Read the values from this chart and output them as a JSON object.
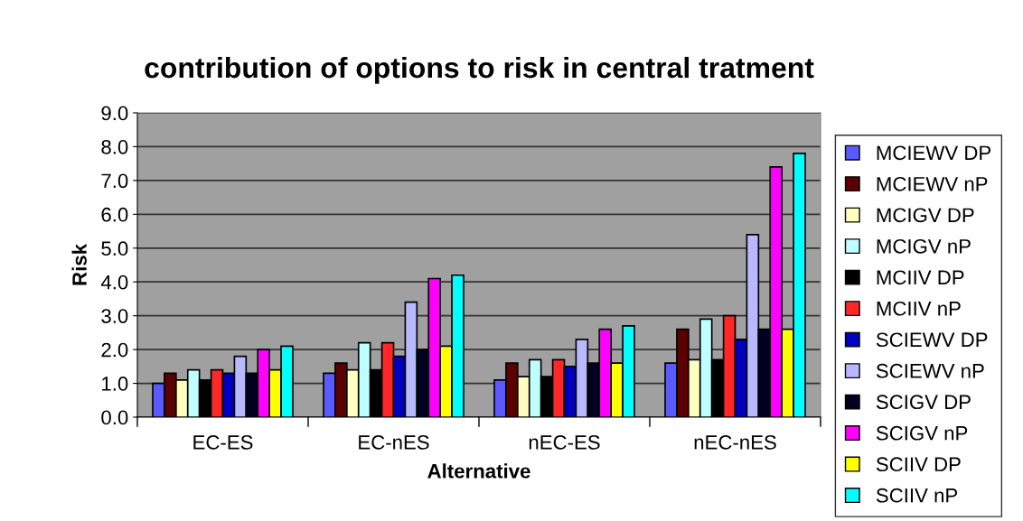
{
  "chart_data": {
    "type": "bar",
    "title": "contribution of options to risk in central tratment",
    "xlabel": "Alternative",
    "ylabel": "Risk",
    "categories": [
      "EC-ES",
      "EC-nES",
      "nEC-ES",
      "nEC-nES"
    ],
    "series": [
      {
        "name": "MCIEWV DP",
        "color": "#5a5aff",
        "values": [
          1.0,
          1.3,
          1.1,
          1.6
        ]
      },
      {
        "name": "MCIEWV nP",
        "color": "#5a0000",
        "values": [
          1.3,
          1.6,
          1.6,
          2.6
        ]
      },
      {
        "name": "MCIGV DP",
        "color": "#ffffc0",
        "values": [
          1.1,
          1.4,
          1.2,
          1.7
        ]
      },
      {
        "name": "MCIGV nP",
        "color": "#c0ffff",
        "values": [
          1.4,
          2.2,
          1.7,
          2.9
        ]
      },
      {
        "name": "MCIIV DP",
        "color": "#000000",
        "values": [
          1.1,
          1.4,
          1.2,
          1.7
        ]
      },
      {
        "name": "MCIIV nP",
        "color": "#ff2828",
        "values": [
          1.4,
          2.2,
          1.7,
          3.0
        ]
      },
      {
        "name": "SCIEWV DP",
        "color": "#0000c0",
        "values": [
          1.3,
          1.8,
          1.5,
          2.3
        ]
      },
      {
        "name": "SCIEWV nP",
        "color": "#b8b8ff",
        "values": [
          1.8,
          3.4,
          2.3,
          5.4
        ]
      },
      {
        "name": "SCIGV DP",
        "color": "#000020",
        "values": [
          1.3,
          2.0,
          1.6,
          2.6
        ]
      },
      {
        "name": "SCIGV nP",
        "color": "#ff00ff",
        "values": [
          2.0,
          4.1,
          2.6,
          7.4
        ]
      },
      {
        "name": "SCIIV DP",
        "color": "#ffff00",
        "values": [
          1.4,
          2.1,
          1.6,
          2.6
        ]
      },
      {
        "name": "SCIIV nP",
        "color": "#00ffff",
        "values": [
          2.1,
          4.2,
          2.7,
          7.8
        ]
      }
    ],
    "ylim": [
      0,
      9
    ],
    "yticks": [
      {
        "value": 0,
        "label": "0.0"
      },
      {
        "value": 1,
        "label": "1.0"
      },
      {
        "value": 2,
        "label": "2.0"
      },
      {
        "value": 3,
        "label": "3.0"
      },
      {
        "value": 4,
        "label": "4.0"
      },
      {
        "value": 5,
        "label": "5.0"
      },
      {
        "value": 6,
        "label": "6.0"
      },
      {
        "value": 7,
        "label": "7.0"
      },
      {
        "value": 8,
        "label": "8.0"
      },
      {
        "value": 9,
        "label": "9.0"
      }
    ],
    "grid": "y",
    "legend": "right"
  }
}
